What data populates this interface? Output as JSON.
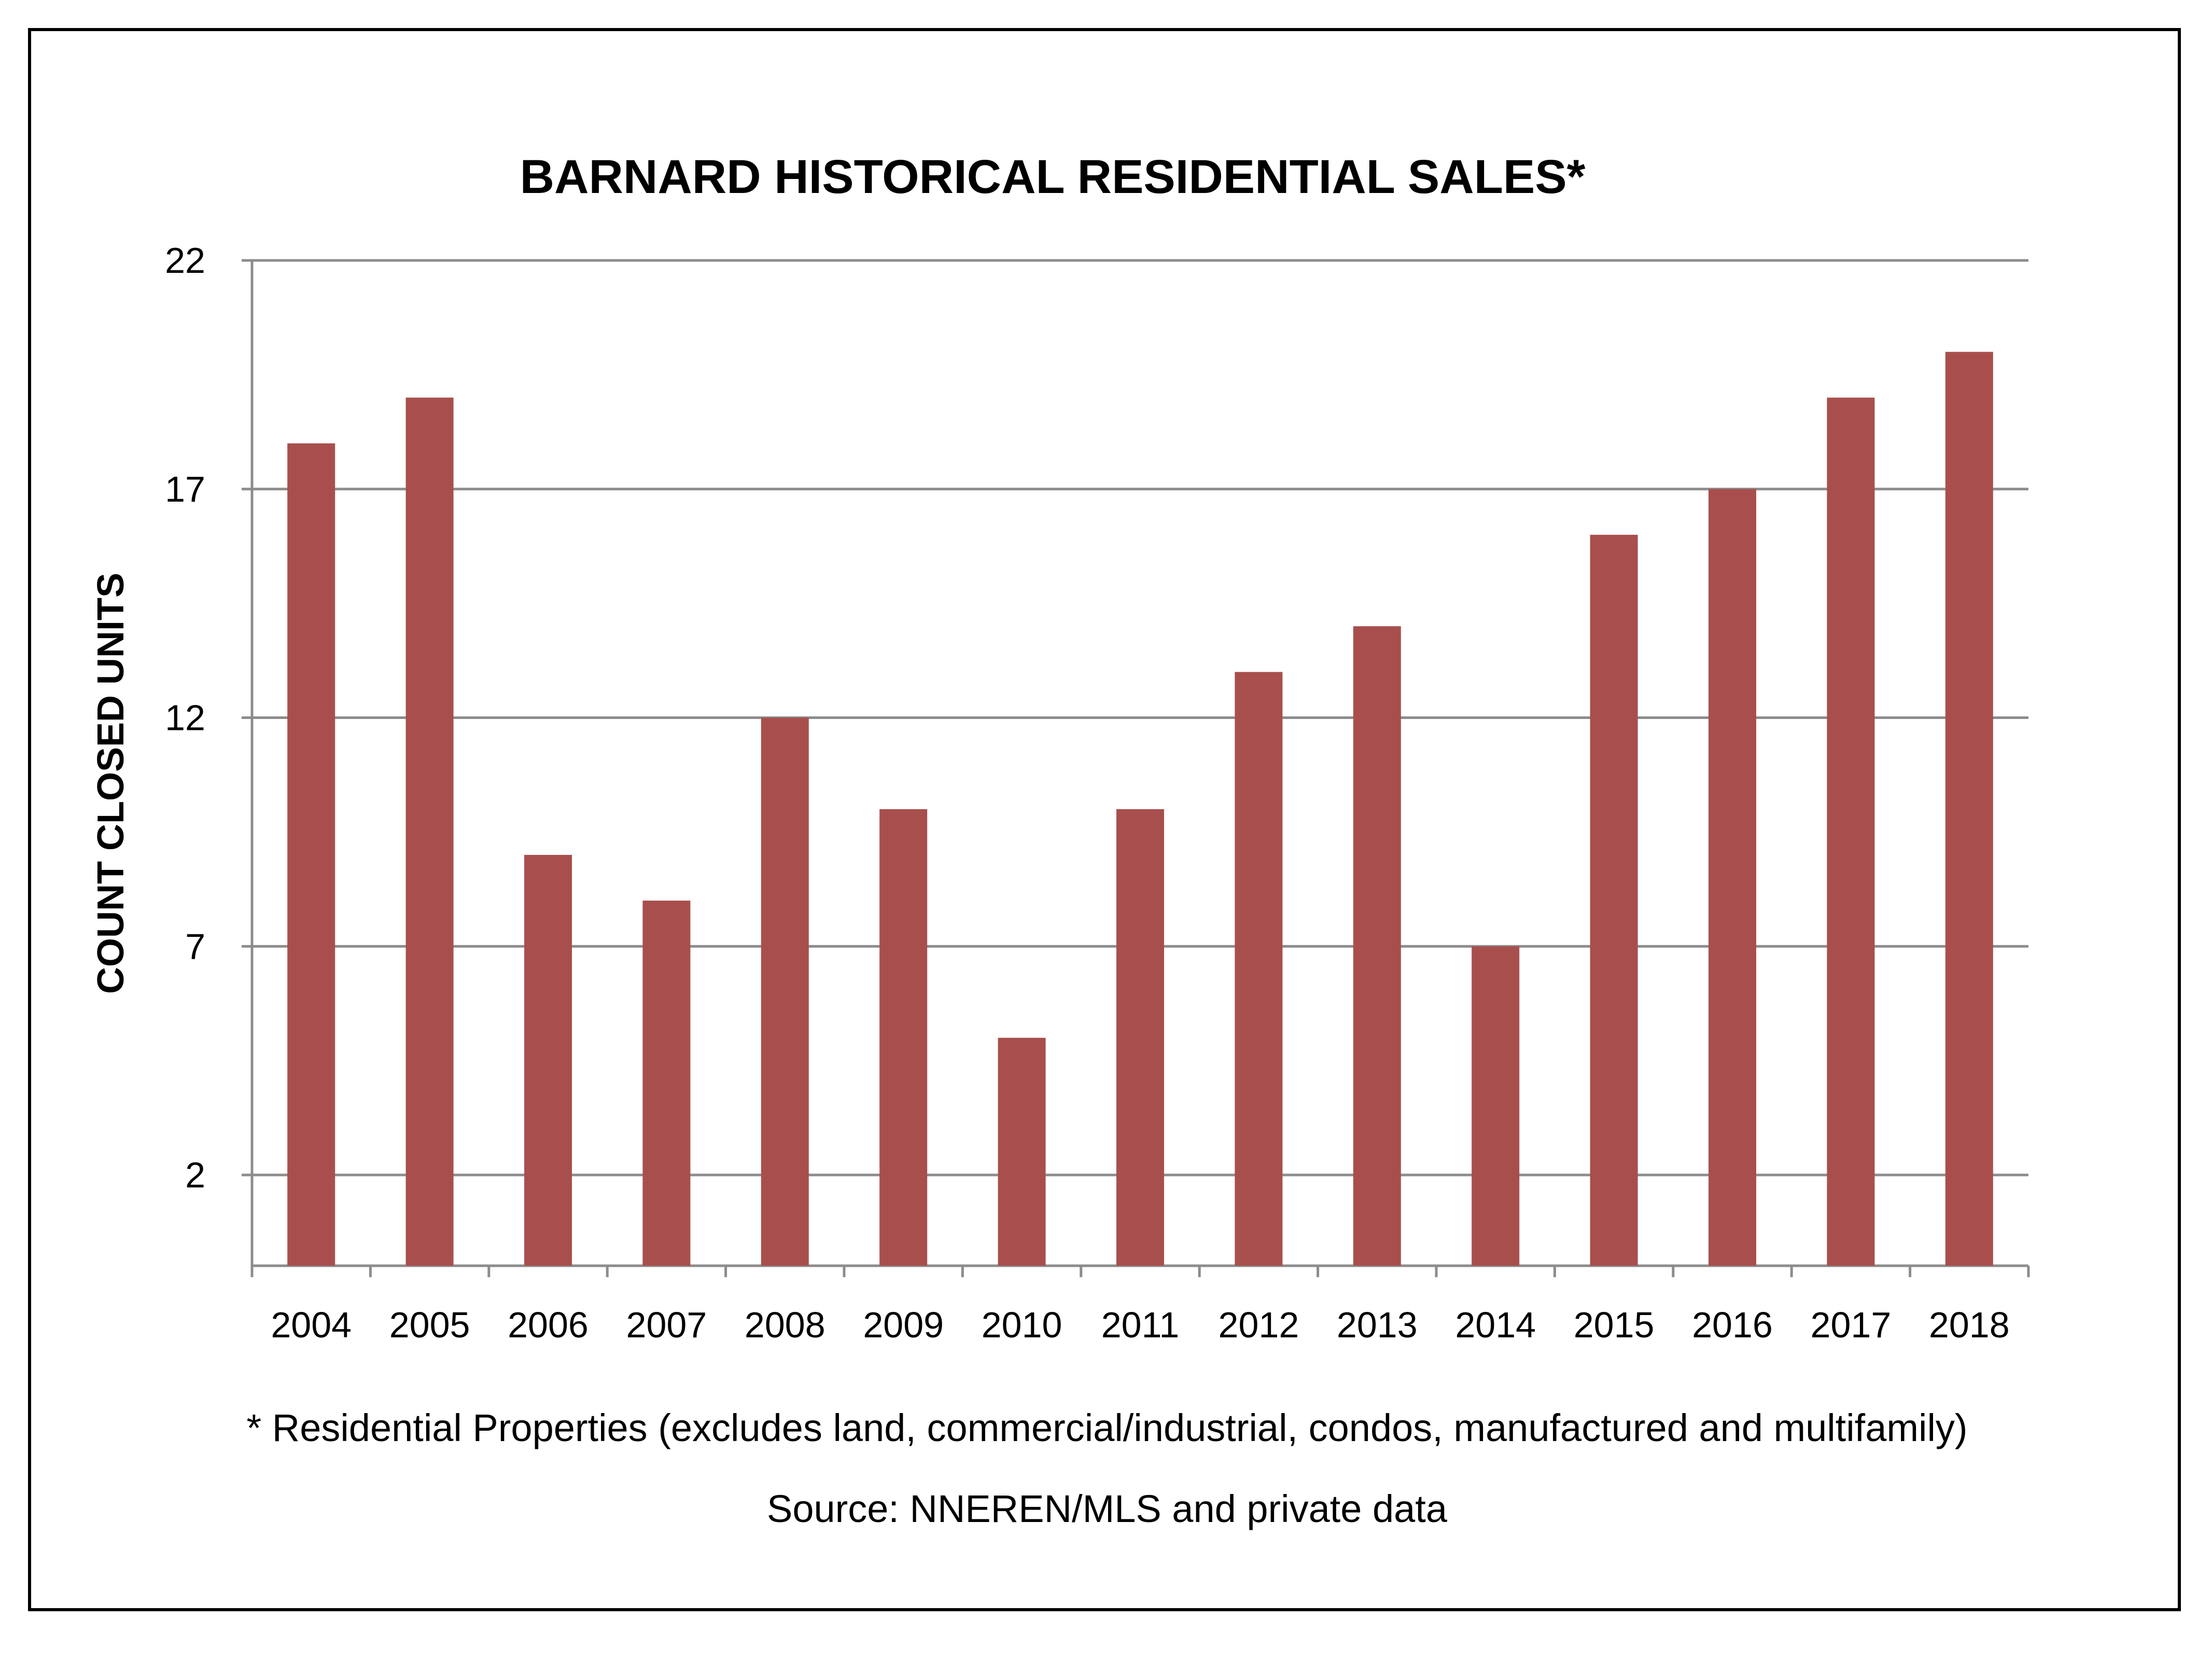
{
  "chart_data": {
    "type": "bar",
    "title": "BARNARD HISTORICAL RESIDENTIAL SALES*",
    "xlabel": "",
    "ylabel": "COUNT CLOSED UNITS",
    "categories": [
      "2004",
      "2005",
      "2006",
      "2007",
      "2008",
      "2009",
      "2010",
      "2011",
      "2012",
      "2013",
      "2014",
      "2015",
      "2016",
      "2017",
      "2018"
    ],
    "series": [
      {
        "values": [
          18,
          19,
          9,
          8,
          12,
          10,
          5,
          10,
          13,
          14,
          7,
          16,
          17,
          19,
          20
        ],
        "color": "#a84f4d"
      }
    ],
    "yticks": [
      "2",
      "7",
      "12",
      "17",
      "22"
    ],
    "ylim": [
      0,
      22
    ],
    "grid": true,
    "legend": "none",
    "footnote": "* Residential Properties (excludes land, commercial/industrial, condos, manufactured and multifamily)",
    "source": "Source: NNEREN/MLS and private data"
  },
  "colors": {
    "bar": "#a84f4d",
    "grid": "#8c8c8c",
    "axis": "#8c8c8c",
    "frame": "#000000"
  }
}
